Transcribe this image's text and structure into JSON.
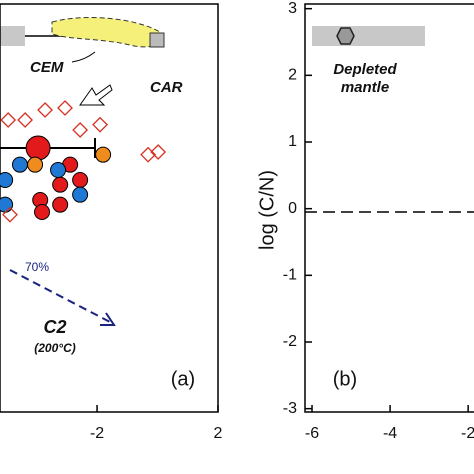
{
  "chart_data": [
    {
      "type": "scatter",
      "xlim": [
        -5.21,
        2
      ],
      "xticks": [
        -2,
        2
      ],
      "ylim": [
        -3.05,
        3.07
      ],
      "series": [
        {
          "color": "#e31a1c",
          "marker": "circle",
          "x": [
            -3.95,
            -2.89,
            -3.22,
            -2.56,
            -3.88,
            -3.22,
            -3.82
          ],
          "values": [
            0.91,
            0.66,
            0.36,
            0.43,
            0.13,
            0.06,
            -0.05
          ]
        },
        {
          "color": "#1f78d4",
          "marker": "circle",
          "x": [
            -5.04,
            -4.55,
            -5.04,
            -2.56,
            -3.29
          ],
          "values": [
            0.43,
            0.66,
            0.06,
            0.21,
            0.58
          ]
        },
        {
          "color": "#f08c1e",
          "marker": "circle",
          "x": [
            -1.8,
            -4.05
          ],
          "values": [
            0.81,
            0.66
          ]
        },
        {
          "color": "#d7301f",
          "marker": "diamond",
          "x": [
            -4.94,
            -4.38,
            -3.72,
            -3.06,
            -2.56,
            -1.9,
            -0.31,
            0.02,
            -4.88
          ],
          "values": [
            1.33,
            1.33,
            1.48,
            1.51,
            1.18,
            1.26,
            0.81,
            0.85,
            -0.09
          ]
        }
      ],
      "annotations": [
        "CEM",
        "CAR",
        "70%",
        "C2",
        "(200°C)",
        "(a)"
      ]
    },
    {
      "type": "reference",
      "xlim": [
        -6.18,
        -1.85
      ],
      "xticks": [
        -6,
        -4,
        -2
      ],
      "ylim": [
        -3.05,
        3.07
      ],
      "yticks": [
        3,
        2,
        1,
        0,
        -1,
        -2,
        -3
      ],
      "ylabel": "log (C/N)",
      "annotations": [
        "Depleted",
        "mantle",
        "(b)"
      ]
    }
  ]
}
